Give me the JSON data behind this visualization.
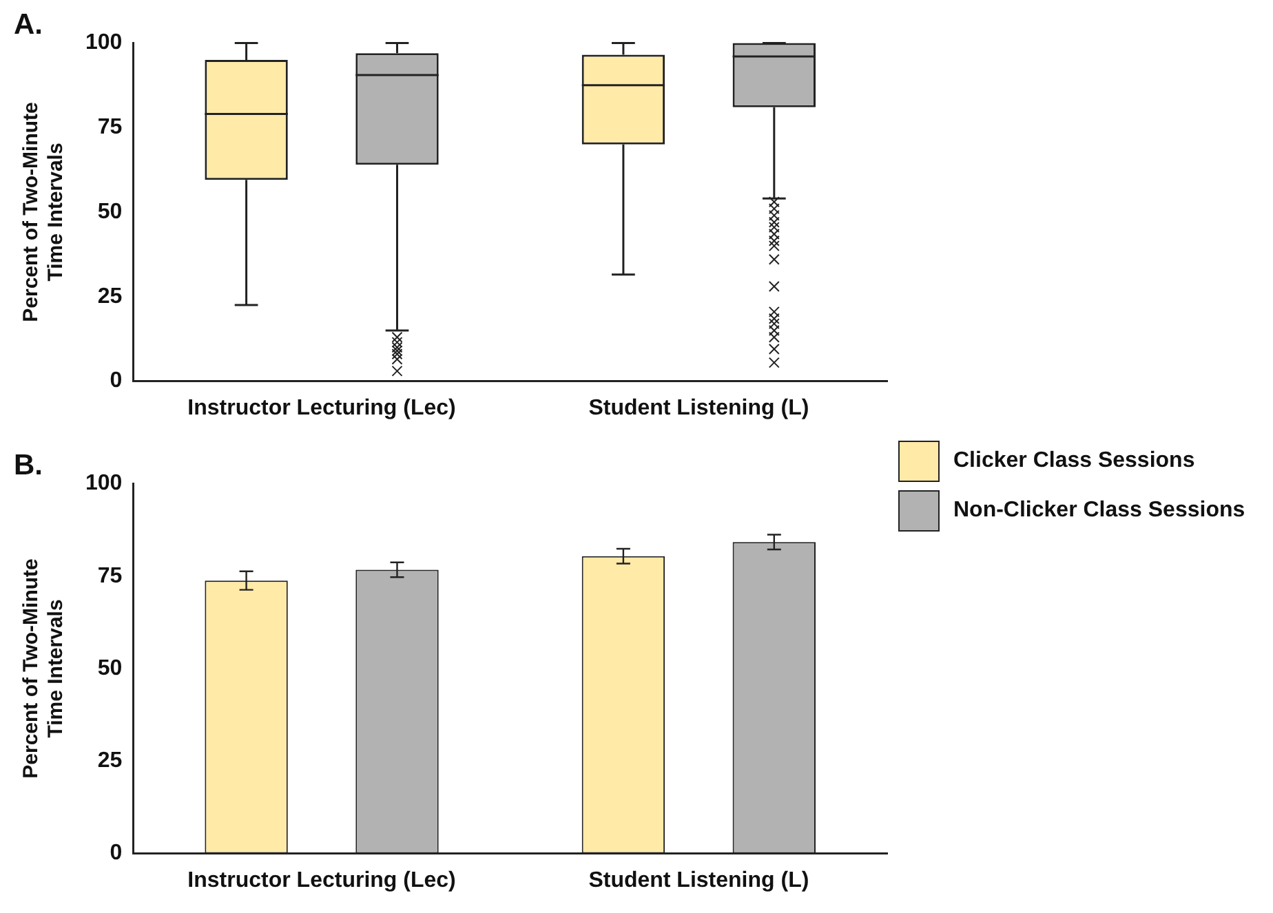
{
  "chart_data": [
    {
      "type": "box",
      "title": "A.",
      "ylabel": "Percent of Two-Minute Time Intervals",
      "categories": [
        "Instructor Lecturing (Lec)",
        "Student Listening (L)"
      ],
      "ylim": [
        0,
        100
      ],
      "yticks": [
        0,
        25,
        50,
        75,
        100
      ],
      "grid": false,
      "legend": false,
      "marker": "cross",
      "series": [
        {
          "color": "#ffeaa8",
          "boxes": [
            {
              "low": 22.5,
              "q1": 59.5,
              "median": 79,
              "q3": 95,
              "high": 100
            },
            {
              "low": 31.5,
              "q1": 70,
              "median": 87.5,
              "q3": 96.5,
              "high": 100
            }
          ]
        },
        {
          "color": "#b2b2b2",
          "boxes": [
            {
              "low": 15,
              "q1": 64,
              "median": 90.5,
              "q3": 97,
              "high": 100,
              "outliers": [
                13,
                11.5,
                10,
                9,
                8,
                6.5,
                3
              ]
            },
            {
              "low": 54,
              "q1": 81,
              "median": 96,
              "q3": 100,
              "high": 100,
              "outliers": [
                53,
                51,
                49,
                47,
                45.5,
                43.5,
                41.5,
                40,
                36,
                28,
                20.5,
                18.5,
                17,
                15,
                13,
                9.5,
                5.5
              ]
            }
          ]
        }
      ]
    },
    {
      "type": "bar",
      "title": "B.",
      "ylabel": "Percent of Two-Minute Time Intervals",
      "categories": [
        "Instructor Lecturing (Lec)",
        "Student Listening (L)"
      ],
      "ylim": [
        0,
        100
      ],
      "yticks": [
        0,
        25,
        50,
        75,
        100
      ],
      "grid": false,
      "legend": "top right",
      "series": [
        {
          "name": "Clicker Class Sessions",
          "color": "#ffeaa8",
          "values": [
            73.8,
            80.4
          ],
          "errors": [
            2.5,
            2
          ]
        },
        {
          "name": "Non-Clicker Class Sessions",
          "color": "#b2b2b2",
          "values": [
            76.7,
            84.2
          ],
          "errors": [
            2,
            2
          ]
        }
      ]
    }
  ]
}
